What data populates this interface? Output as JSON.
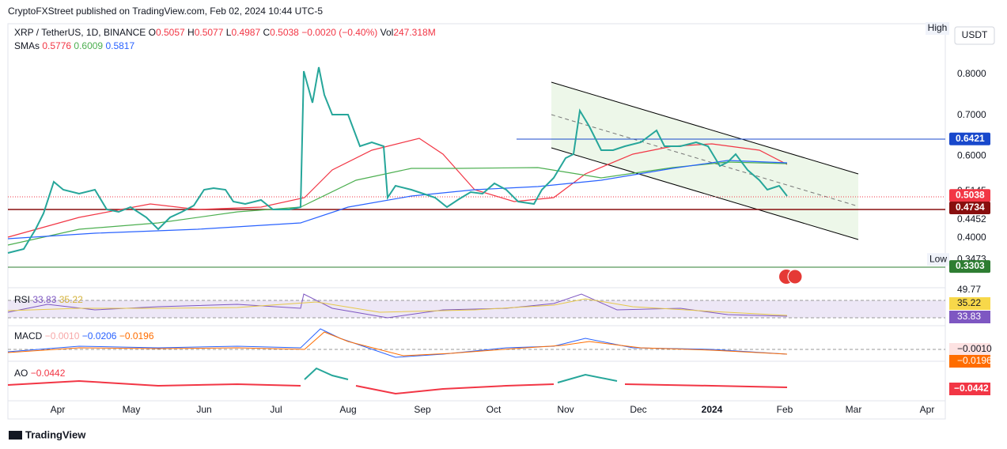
{
  "header": {
    "publisher": "CryptoFXStreet published on TradingView.com, Feb 02, 2024 10:44 UTC-5"
  },
  "legend": {
    "symbol": "XRP / TetherUS, 1D, BINANCE",
    "ohlc": [
      {
        "label": "O",
        "value": "0.5057"
      },
      {
        "label": "H",
        "value": "0.5077"
      },
      {
        "label": "L",
        "value": "0.4987"
      },
      {
        "label": "C",
        "value": "0.5038"
      }
    ],
    "change": "−0.0020 (−0.40%)",
    "volume_label": "Vol",
    "volume": "247.318M",
    "sma_label": "SMAs",
    "sma_values": [
      {
        "value": "0.5776",
        "color": "#f23645"
      },
      {
        "value": "0.6009",
        "color": "#4caf50"
      },
      {
        "value": "0.5817",
        "color": "#2962ff"
      }
    ]
  },
  "price_axis": {
    "currency": "USDT",
    "high": "High",
    "low": "Low",
    "ticks": [
      "0.8000",
      "0.7000",
      "0.6000",
      "0.5145",
      "0.4452",
      "0.4000",
      "0.3473"
    ],
    "labels": [
      {
        "text": "0.6421",
        "color": "#1848cc"
      },
      {
        "text": "0.5038",
        "color": "#f23645"
      },
      {
        "text": "0.4734",
        "color": "#880e0e"
      },
      {
        "text": "0.3303",
        "color": "#2e7d32"
      }
    ]
  },
  "time_axis": {
    "labels": [
      "Apr",
      "May",
      "Jun",
      "Jul",
      "Aug",
      "Sep",
      "Oct",
      "Nov",
      "Dec",
      "2024",
      "Feb",
      "Mar",
      "Apr"
    ]
  },
  "rsi": {
    "label": "RSI",
    "values": [
      "33.83",
      "35.22"
    ],
    "axis": [
      "49.77",
      "35.22",
      "33.83"
    ]
  },
  "macd": {
    "label": "MACD",
    "values": [
      "−0.0010",
      "−0.0206",
      "−0.0196"
    ],
    "axis": [
      "−0.0010",
      "−0.0196"
    ]
  },
  "ao": {
    "label": "AO",
    "value": "−0.0442",
    "axis": "−0.0442"
  },
  "footer": {
    "brand": "TradingView"
  }
}
